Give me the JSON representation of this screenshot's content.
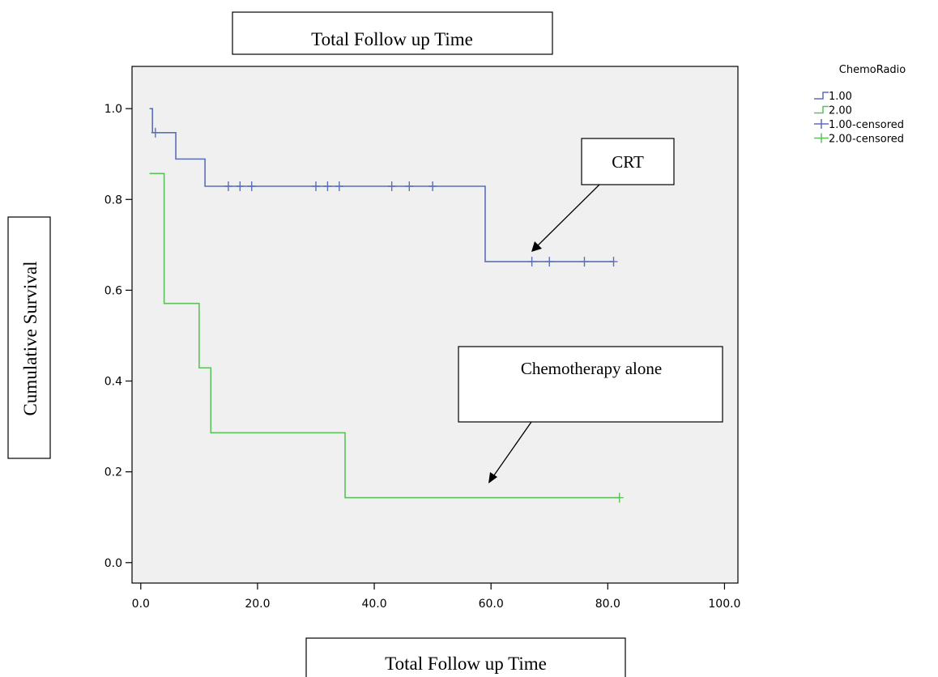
{
  "chart_data": {
    "type": "line",
    "title": "Total Follow up Time",
    "xlabel": "Total Follow up Time",
    "ylabel": "Cumulative Survival",
    "xlim": [
      0,
      100
    ],
    "ylim": [
      0,
      1
    ],
    "xticks": [
      "0.0",
      "20.0",
      "40.0",
      "60.0",
      "80.0",
      "100.0"
    ],
    "yticks": [
      "0.0",
      "0.2",
      "0.4",
      "0.6",
      "0.8",
      "1.0"
    ],
    "grid": false,
    "legend": {
      "position": "right",
      "title": "ChemoRadio",
      "entries": [
        "1.00",
        "2.00",
        "1.00-censored",
        "2.00-censored"
      ]
    },
    "series": [
      {
        "name": "1.00",
        "color": "#5b6fb8",
        "steps": [
          [
            1.5,
            1.0
          ],
          [
            2,
            0.947
          ],
          [
            6,
            0.889
          ],
          [
            11,
            0.829
          ],
          [
            59,
            0.663
          ],
          [
            81,
            0.663
          ]
        ],
        "censored": [
          [
            2.5,
            0.947
          ],
          [
            15,
            0.829
          ],
          [
            17,
            0.829
          ],
          [
            19,
            0.829
          ],
          [
            30,
            0.829
          ],
          [
            32,
            0.829
          ],
          [
            34,
            0.829
          ],
          [
            43,
            0.829
          ],
          [
            46,
            0.829
          ],
          [
            50,
            0.829
          ],
          [
            67,
            0.663
          ],
          [
            70,
            0.663
          ],
          [
            76,
            0.663
          ],
          [
            81,
            0.663
          ]
        ]
      },
      {
        "name": "2.00",
        "color": "#5cc05c",
        "steps": [
          [
            1.5,
            0.857
          ],
          [
            4,
            0.571
          ],
          [
            10,
            0.429
          ],
          [
            12,
            0.286
          ],
          [
            35,
            0.143
          ],
          [
            82,
            0.143
          ]
        ],
        "censored": [
          [
            82,
            0.143
          ]
        ]
      }
    ],
    "annotations": [
      "CRT",
      "Chemotherapy alone"
    ]
  }
}
